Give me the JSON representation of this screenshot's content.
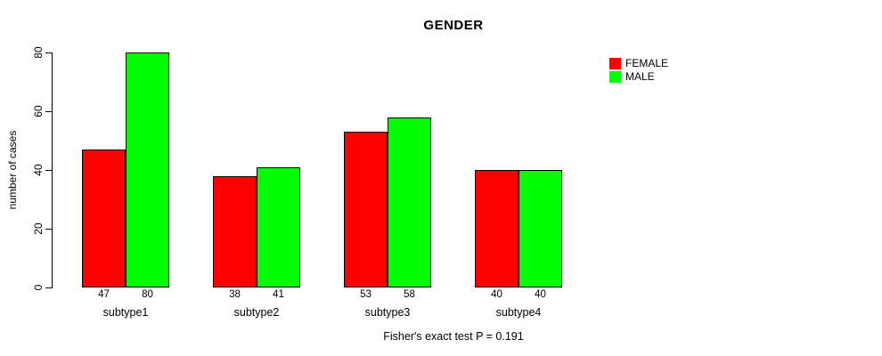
{
  "page": {
    "background": "#FFFFFF"
  },
  "chart_data": {
    "type": "bar",
    "title": "GENDER",
    "xlabel": "",
    "ylabel": "number of cases",
    "categories": [
      "subtype1",
      "subtype2",
      "subtype3",
      "subtype4"
    ],
    "series": [
      {
        "name": "FEMALE",
        "color": "#FF0000",
        "values": [
          47,
          38,
          53,
          40
        ]
      },
      {
        "name": "MALE",
        "color": "#00FF00",
        "values": [
          80,
          41,
          58,
          40
        ]
      }
    ],
    "ylim": [
      0,
      80
    ],
    "yticks": [
      0,
      20,
      40,
      60,
      80
    ],
    "grid": false,
    "legend_position": "top-right",
    "bar_value_labels": true,
    "annotation": "Fisher's exact test P = 0.191"
  }
}
